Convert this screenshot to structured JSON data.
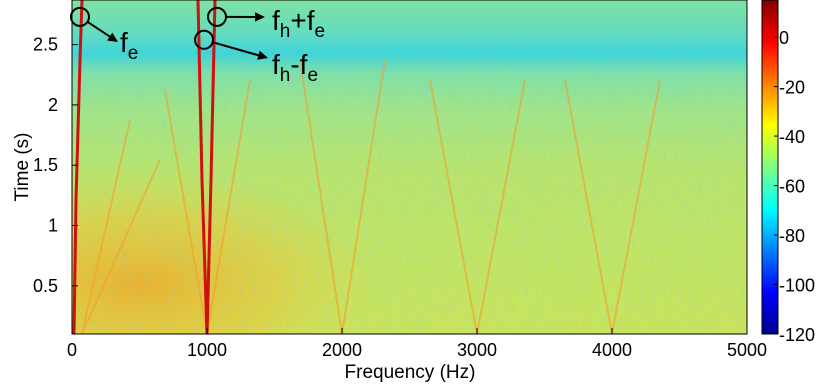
{
  "chart_data": {
    "type": "spectrogram",
    "x_label": "Frequency (Hz)",
    "y_label": "Time (s)",
    "xlim": [
      0,
      5000
    ],
    "xticks": [
      0,
      1000,
      2000,
      3000,
      4000,
      5000
    ],
    "ylim": [
      0.1,
      2.87
    ],
    "yticks": [
      0.5,
      1,
      1.5,
      2,
      2.5
    ],
    "colorbar": {
      "colormap": "jet",
      "lim": [
        -120,
        15
      ],
      "ticks": [
        -120,
        -100,
        -80,
        -60,
        -40,
        -20,
        0
      ]
    },
    "annotations": [
      {
        "parts": [
          "f",
          "e"
        ],
        "x": 59,
        "y": 2.73
      },
      {
        "parts": [
          "f",
          "h",
          "+f",
          "e"
        ],
        "x": 1074,
        "y": 2.73
      },
      {
        "parts": [
          "f",
          "h",
          "-f",
          "e"
        ],
        "x": 978,
        "y": 2.54
      }
    ]
  }
}
